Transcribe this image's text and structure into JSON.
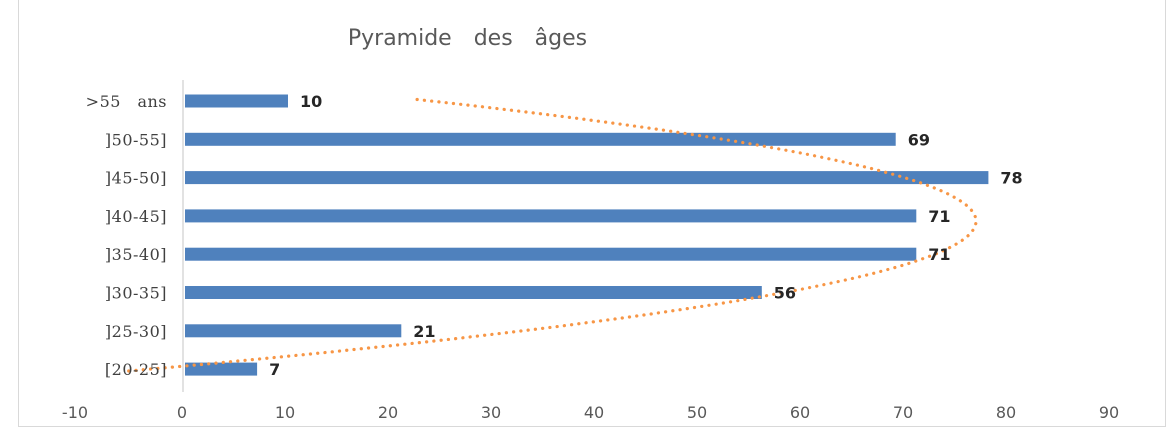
{
  "chart_data": {
    "type": "bar",
    "orientation": "horizontal",
    "title": "Pyramide des âges",
    "categories": [
      "[20-25]",
      "]25-30]",
      "]30-35]",
      "]35-40]",
      "]40-45]",
      "]45-50]",
      "]50-55]",
      ">55 ans"
    ],
    "values": [
      7,
      21,
      56,
      71,
      71,
      78,
      69,
      10
    ],
    "data_labels": [
      "7",
      "21",
      "56",
      "71",
      "71",
      "78",
      "69",
      "10"
    ],
    "xlim": [
      -10,
      90
    ],
    "xticks": [
      "-10",
      "0",
      "10",
      "20",
      "30",
      "40",
      "50",
      "60",
      "70",
      "80",
      "90"
    ],
    "grid": false,
    "legend": "none",
    "bar_color": "#4f81bd",
    "trendline": {
      "type": "polynomial",
      "style": "dotted",
      "color": "#f79646"
    }
  }
}
